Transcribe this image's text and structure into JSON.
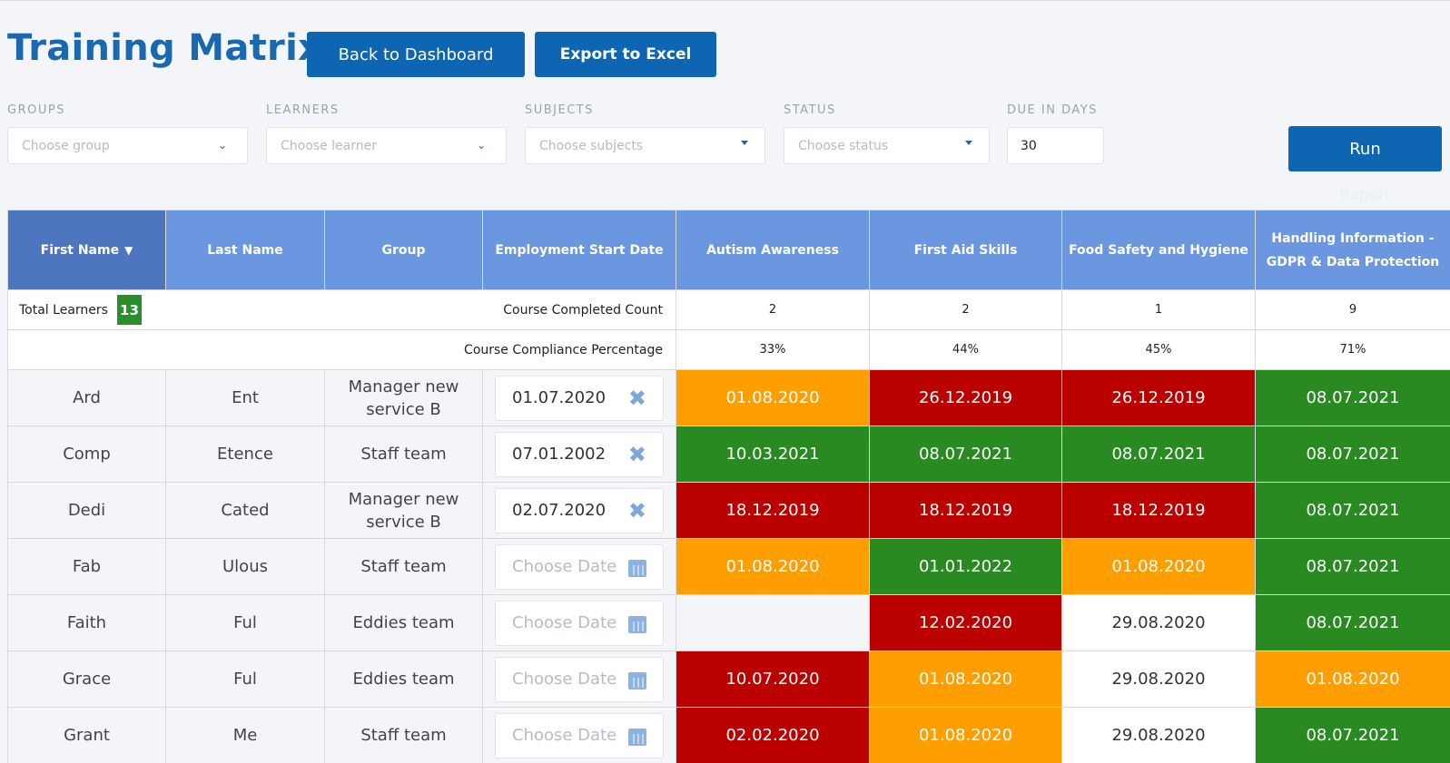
{
  "page": {
    "title": "Training Matrix"
  },
  "toolbar": {
    "back_label": "Back to Dashboard",
    "export_label": "Export to Excel"
  },
  "filters": {
    "groups": {
      "label": "GROUPS",
      "placeholder": "Choose group"
    },
    "learners": {
      "label": "LEARNERS",
      "placeholder": "Choose learner"
    },
    "subjects": {
      "label": "SUBJECTS",
      "placeholder": "Choose subjects"
    },
    "status": {
      "label": "STATUS",
      "placeholder": "Choose status"
    },
    "due_days": {
      "label": "DUE IN DAYS",
      "value": "30"
    },
    "run_label": "Run",
    "run_sub_label": "Report"
  },
  "summary": {
    "total_learners_label": "Total Learners",
    "total_learners_value": "13",
    "completed_label": "Course Completed Count",
    "completed": [
      "2",
      "2",
      "1",
      "9"
    ],
    "compliance_label": "Course Compliance Percentage",
    "compliance": [
      "33%",
      "44%",
      "45%",
      "71%"
    ]
  },
  "columns": {
    "first_name": "First Name",
    "last_name": "Last Name",
    "group": "Group",
    "start_date": "Employment Start Date",
    "courses": [
      "Autism Awareness",
      "First Aid Skills",
      "Food Safety and Hygiene",
      "Handling Information - GDPR & Data Protection"
    ]
  },
  "date_placeholder": "Choose Date",
  "status_colors": {
    "overdue": "#bb0000",
    "due_soon": "#ff9e00",
    "completed": "#2a8a22",
    "not_required": "#ffffff"
  },
  "rows": [
    {
      "first": "Ard",
      "last": "Ent",
      "group": "Manager new service B",
      "start": "01.07.2020",
      "cells": [
        [
          "01.08.2020",
          "orange"
        ],
        [
          "26.12.2019",
          "red"
        ],
        [
          "26.12.2019",
          "red"
        ],
        [
          "08.07.2021",
          "green"
        ]
      ]
    },
    {
      "first": "Comp",
      "last": "Etence",
      "group": "Staff team",
      "start": "07.01.2002",
      "cells": [
        [
          "10.03.2021",
          "green"
        ],
        [
          "08.07.2021",
          "green"
        ],
        [
          "08.07.2021",
          "green"
        ],
        [
          "08.07.2021",
          "green"
        ]
      ]
    },
    {
      "first": "Dedi",
      "last": "Cated",
      "group": "Manager new service B",
      "start": "02.07.2020",
      "cells": [
        [
          "18.12.2019",
          "red"
        ],
        [
          "18.12.2019",
          "red"
        ],
        [
          "18.12.2019",
          "red"
        ],
        [
          "08.07.2021",
          "green"
        ]
      ]
    },
    {
      "first": "Fab",
      "last": "Ulous",
      "group": "Staff team",
      "start": "",
      "cells": [
        [
          "01.08.2020",
          "orange"
        ],
        [
          "01.01.2022",
          "green"
        ],
        [
          "01.08.2020",
          "orange"
        ],
        [
          "08.07.2021",
          "green"
        ]
      ]
    },
    {
      "first": "Faith",
      "last": "Ful",
      "group": "Eddies team",
      "start": "",
      "cells": [
        [
          "",
          "blank"
        ],
        [
          "12.02.2020",
          "red"
        ],
        [
          "29.08.2020",
          "white"
        ],
        [
          "08.07.2021",
          "green"
        ]
      ]
    },
    {
      "first": "Grace",
      "last": "Ful",
      "group": "Eddies team",
      "start": "",
      "cells": [
        [
          "10.07.2020",
          "red"
        ],
        [
          "01.08.2020",
          "orange"
        ],
        [
          "29.08.2020",
          "white"
        ],
        [
          "01.08.2020",
          "orange"
        ]
      ]
    },
    {
      "first": "Grant",
      "last": "Me",
      "group": "Staff team",
      "start": "",
      "cells": [
        [
          "02.02.2020",
          "red"
        ],
        [
          "01.08.2020",
          "orange"
        ],
        [
          "29.08.2020",
          "white"
        ],
        [
          "08.07.2021",
          "green"
        ]
      ]
    }
  ]
}
